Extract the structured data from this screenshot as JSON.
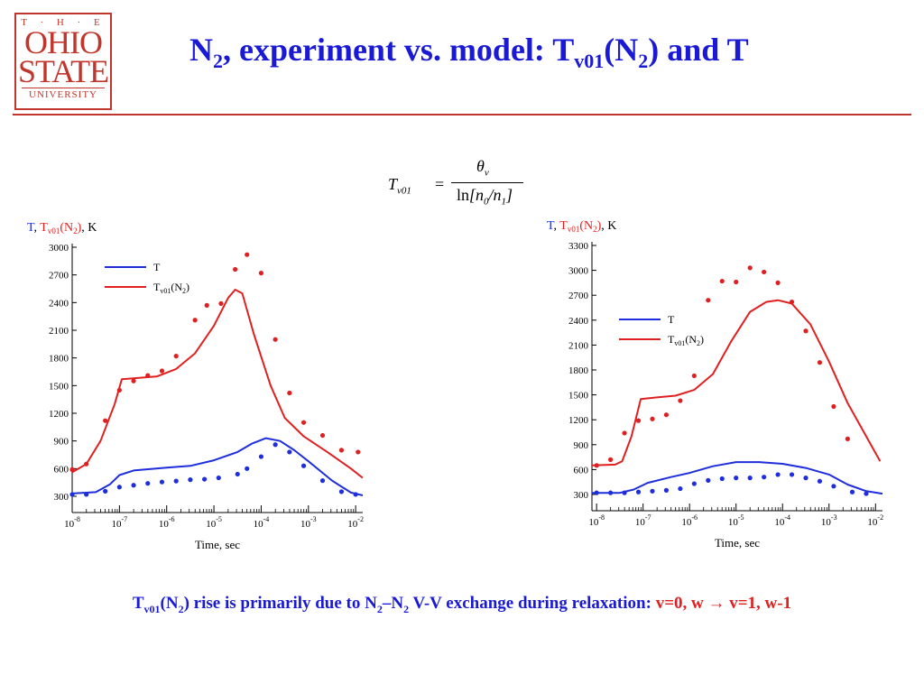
{
  "logo": {
    "line1": "T · H · E",
    "line2": "OHIO",
    "line3": "STATE",
    "line4": "UNIVERSITY"
  },
  "title": {
    "part1": "N",
    "sub1": "2",
    "part2": ", experiment vs. model:  T",
    "sub2": "v01",
    "part3": "(N",
    "sub3": "2",
    "part4": ") and T"
  },
  "formula": {
    "lhs": "T",
    "lhs_sub": "v01",
    "eq": "=",
    "num": "θ",
    "num_sub": "v",
    "den_ln": "ln",
    "den_body": "[n",
    "den_sub0": "0",
    "den_slash": "/n",
    "den_sub1": "1",
    "den_close": "]"
  },
  "caption": {
    "a": "T",
    "a_sub": "v01",
    "b": "(N",
    "b_sub": "2",
    "c": ") rise is primarily due to N",
    "c_sub": "2",
    "d": "–N",
    "d_sub": "2",
    "e": " V-V exchange during relaxation: ",
    "f": "v=0, w → v=1, w-1"
  },
  "colors": {
    "T": "#1e2edc",
    "Tv01": "#e02020",
    "title": "#1a1ad6",
    "accent": "#c0362c"
  },
  "chart_data": [
    {
      "type": "line",
      "ylabel": "T, Tv01(N2), K",
      "xlabel": "Time, sec",
      "xscale": "log",
      "xlim": [
        -8,
        -1.85
      ],
      "ylim": [
        300,
        3000
      ],
      "yticks": [
        "300",
        "600",
        "900",
        "1200",
        "1500",
        "1800",
        "2100",
        "2400",
        "2700",
        "3000"
      ],
      "xticks": [
        "10-8",
        "10-7",
        "10-6",
        "10-5",
        "10-4",
        "10-3",
        "10-2"
      ],
      "legend": {
        "position": "top-left",
        "entries": [
          "T",
          "Tv01(N2)"
        ]
      },
      "series": [
        {
          "name": "T",
          "kind": "line",
          "points": [
            [
              -8,
              330
            ],
            [
              -7.5,
              345
            ],
            [
              -7.2,
              430
            ],
            [
              -7,
              530
            ],
            [
              -6.7,
              580
            ],
            [
              -6,
              610
            ],
            [
              -5.5,
              630
            ],
            [
              -5,
              690
            ],
            [
              -4.5,
              780
            ],
            [
              -4.2,
              870
            ],
            [
              -3.9,
              930
            ],
            [
              -3.6,
              900
            ],
            [
              -3.3,
              800
            ],
            [
              -3,
              680
            ],
            [
              -2.5,
              470
            ],
            [
              -2.1,
              340
            ],
            [
              -1.85,
              310
            ]
          ]
        },
        {
          "name": "Tv01(N2)",
          "kind": "line",
          "points": [
            [
              -8,
              560
            ],
            [
              -7.7,
              650
            ],
            [
              -7.4,
              900
            ],
            [
              -7.1,
              1300
            ],
            [
              -6.95,
              1570
            ],
            [
              -6.7,
              1580
            ],
            [
              -6.2,
              1600
            ],
            [
              -5.8,
              1680
            ],
            [
              -5.4,
              1850
            ],
            [
              -5,
              2150
            ],
            [
              -4.7,
              2450
            ],
            [
              -4.55,
              2540
            ],
            [
              -4.4,
              2500
            ],
            [
              -4.15,
              2050
            ],
            [
              -3.8,
              1500
            ],
            [
              -3.5,
              1150
            ],
            [
              -3.1,
              950
            ],
            [
              -2.6,
              780
            ],
            [
              -2.1,
              600
            ],
            [
              -1.85,
              500
            ]
          ]
        },
        {
          "name": "T",
          "kind": "points",
          "points": [
            [
              -8,
              320
            ],
            [
              -7.7,
              320
            ],
            [
              -7.3,
              355
            ],
            [
              -7,
              400
            ],
            [
              -6.7,
              420
            ],
            [
              -6.4,
              440
            ],
            [
              -6.1,
              455
            ],
            [
              -5.8,
              465
            ],
            [
              -5.5,
              480
            ],
            [
              -5.2,
              485
            ],
            [
              -4.9,
              500
            ],
            [
              -4.5,
              540
            ],
            [
              -4.3,
              600
            ],
            [
              -4,
              730
            ],
            [
              -3.7,
              860
            ],
            [
              -3.4,
              780
            ],
            [
              -3.1,
              630
            ],
            [
              -2.7,
              470
            ],
            [
              -2.3,
              350
            ],
            [
              -2,
              320
            ]
          ]
        },
        {
          "name": "Tv01(N2)",
          "kind": "points",
          "points": [
            [
              -8,
              590
            ],
            [
              -7.7,
              650
            ],
            [
              -7.3,
              1120
            ],
            [
              -7,
              1450
            ],
            [
              -6.7,
              1550
            ],
            [
              -6.4,
              1610
            ],
            [
              -6.1,
              1660
            ],
            [
              -5.8,
              1820
            ],
            [
              -5.4,
              2210
            ],
            [
              -5.15,
              2370
            ],
            [
              -4.85,
              2390
            ],
            [
              -4.55,
              2760
            ],
            [
              -4.3,
              2920
            ],
            [
              -4,
              2720
            ],
            [
              -3.7,
              2000
            ],
            [
              -3.4,
              1420
            ],
            [
              -3.1,
              1100
            ],
            [
              -2.7,
              960
            ],
            [
              -2.3,
              800
            ],
            [
              -1.95,
              780
            ]
          ]
        }
      ]
    },
    {
      "type": "line",
      "ylabel": "T, Tv01(N2), K",
      "xlabel": "Time, sec",
      "xscale": "log",
      "xlim": [
        -8.1,
        -1.85
      ],
      "ylim": [
        300,
        3300
      ],
      "yticks": [
        "300",
        "600",
        "900",
        "1200",
        "1500",
        "1800",
        "2100",
        "2400",
        "2700",
        "3000",
        "3300"
      ],
      "xticks": [
        "10-8",
        "10-7",
        "10-6",
        "10-5",
        "10-4",
        "10-3",
        "10-2"
      ],
      "legend": {
        "position": "center-left",
        "entries": [
          "T",
          "Tv01(N2)"
        ]
      },
      "series": [
        {
          "name": "T",
          "kind": "line",
          "points": [
            [
              -8.1,
              320
            ],
            [
              -7.5,
              320
            ],
            [
              -7.2,
              360
            ],
            [
              -6.9,
              440
            ],
            [
              -6.4,
              510
            ],
            [
              -6,
              560
            ],
            [
              -5.5,
              640
            ],
            [
              -5,
              690
            ],
            [
              -4.5,
              690
            ],
            [
              -4,
              670
            ],
            [
              -3.5,
              620
            ],
            [
              -3,
              540
            ],
            [
              -2.6,
              420
            ],
            [
              -2.2,
              340
            ],
            [
              -1.85,
              310
            ]
          ]
        },
        {
          "name": "Tv01(N2)",
          "kind": "line",
          "points": [
            [
              -8.1,
              650
            ],
            [
              -7.6,
              660
            ],
            [
              -7.45,
              700
            ],
            [
              -7.25,
              1000
            ],
            [
              -7.05,
              1450
            ],
            [
              -6.7,
              1470
            ],
            [
              -6.3,
              1490
            ],
            [
              -5.9,
              1560
            ],
            [
              -5.5,
              1750
            ],
            [
              -5.1,
              2150
            ],
            [
              -4.7,
              2500
            ],
            [
              -4.35,
              2620
            ],
            [
              -4.1,
              2640
            ],
            [
              -3.8,
              2600
            ],
            [
              -3.4,
              2350
            ],
            [
              -3,
              1900
            ],
            [
              -2.6,
              1400
            ],
            [
              -2.2,
              1000
            ],
            [
              -1.9,
              700
            ]
          ]
        },
        {
          "name": "T",
          "kind": "points",
          "points": [
            [
              -8,
              320
            ],
            [
              -7.7,
              320
            ],
            [
              -7.4,
              320
            ],
            [
              -7.1,
              330
            ],
            [
              -6.8,
              340
            ],
            [
              -6.5,
              350
            ],
            [
              -6.2,
              370
            ],
            [
              -5.9,
              430
            ],
            [
              -5.6,
              470
            ],
            [
              -5.3,
              490
            ],
            [
              -5,
              500
            ],
            [
              -4.7,
              500
            ],
            [
              -4.4,
              510
            ],
            [
              -4.1,
              540
            ],
            [
              -3.8,
              540
            ],
            [
              -3.5,
              500
            ],
            [
              -3.2,
              460
            ],
            [
              -2.9,
              400
            ],
            [
              -2.5,
              330
            ],
            [
              -2.2,
              310
            ]
          ]
        },
        {
          "name": "Tv01(N2)",
          "kind": "points",
          "points": [
            [
              -8,
              650
            ],
            [
              -7.7,
              720
            ],
            [
              -7.4,
              1040
            ],
            [
              -7.1,
              1190
            ],
            [
              -6.8,
              1210
            ],
            [
              -6.5,
              1260
            ],
            [
              -6.2,
              1430
            ],
            [
              -5.9,
              1730
            ],
            [
              -5.6,
              2640
            ],
            [
              -5.3,
              2870
            ],
            [
              -5,
              2860
            ],
            [
              -4.7,
              3030
            ],
            [
              -4.4,
              2980
            ],
            [
              -4.1,
              2850
            ],
            [
              -3.8,
              2620
            ],
            [
              -3.5,
              2270
            ],
            [
              -3.2,
              1890
            ],
            [
              -2.9,
              1360
            ],
            [
              -2.6,
              970
            ]
          ]
        }
      ]
    }
  ]
}
